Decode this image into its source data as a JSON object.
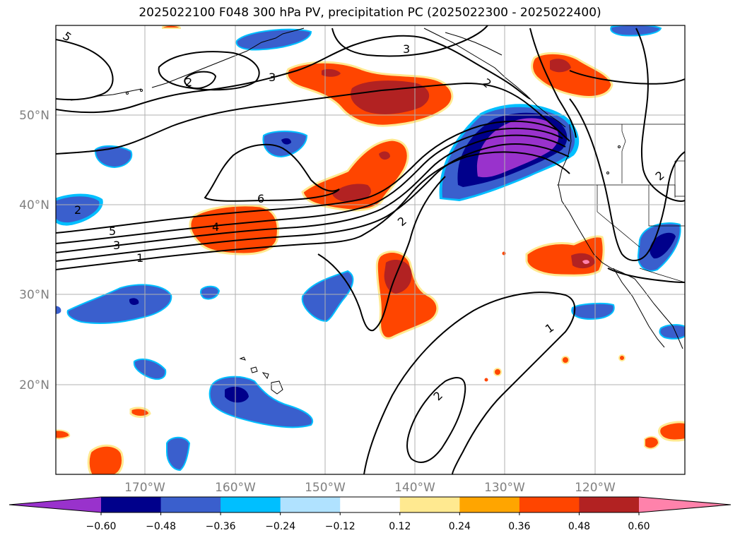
{
  "title": "2025022100 F048 300 hPa PV, precipitation PC (2025022300 - 2025022400)",
  "latitude_labels": [
    "50°N",
    "40°N",
    "30°N",
    "20°N"
  ],
  "longitude_labels": [
    "170°W",
    "160°W",
    "150°W",
    "140°W",
    "130°W",
    "120°W"
  ],
  "colorbar": {
    "tick_labels": [
      "−0.60",
      "−0.48",
      "−0.36",
      "−0.24",
      "−0.12",
      "0.12",
      "0.24",
      "0.36",
      "0.48",
      "0.60"
    ],
    "colors": [
      "#9932CC",
      "#00008B",
      "#3A5FCD",
      "#00BFFF",
      "#B0E2FF",
      "#FFFFFF",
      "#FFE990",
      "#FFA500",
      "#FF4500",
      "#B22222",
      "#FF82AB"
    ]
  },
  "contour_labels": [
    "5",
    "3",
    "3",
    "2",
    "6",
    "5",
    "4",
    "3",
    "1",
    "2",
    "2",
    "1",
    "2",
    "2",
    "2"
  ],
  "shading_colors": {
    "purple": "#9932CC",
    "navy": "#00008B",
    "blue": "#3A5FCD",
    "cyan": "#00BFFF",
    "yellow": "#FFE990",
    "orange": "#FF4500",
    "red": "#B22222",
    "pink": "#FF82AB"
  }
}
